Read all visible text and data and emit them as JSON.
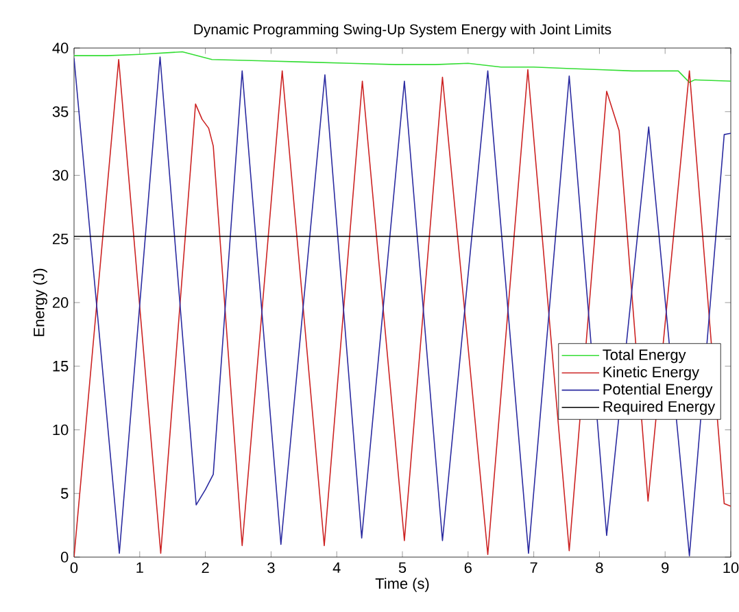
{
  "chart_data": {
    "type": "line",
    "title": "Dynamic Programming Swing-Up System Energy with Joint Limits",
    "xlabel": "Time (s)",
    "ylabel": "Energy (J)",
    "xlim": [
      0,
      10
    ],
    "xticks": [
      0,
      1,
      2,
      3,
      4,
      5,
      6,
      7,
      8,
      9,
      10
    ],
    "ylim": [
      0,
      40
    ],
    "yticks": [
      0,
      5,
      10,
      15,
      20,
      25,
      30,
      35,
      40
    ],
    "grid": false,
    "legend": "right",
    "marker": "none",
    "line_style": "solid",
    "series": [
      {
        "name": "Total Energy",
        "color": "#33dd33",
        "x": [
          0,
          0.5,
          1.0,
          1.65,
          1.8,
          2.1,
          2.8,
          3.5,
          4.2,
          4.9,
          5.5,
          6.0,
          6.5,
          7.0,
          7.5,
          8.0,
          8.5,
          9.2,
          9.37,
          9.45,
          10
        ],
        "values": [
          39.4,
          39.4,
          39.5,
          39.7,
          39.5,
          39.1,
          39.0,
          38.9,
          38.8,
          38.7,
          38.7,
          38.8,
          38.5,
          38.5,
          38.4,
          38.3,
          38.2,
          38.2,
          37.3,
          37.5,
          37.4
        ]
      },
      {
        "name": "Kinetic Energy",
        "color": "#cc2222",
        "x": [
          0,
          0.68,
          1.32,
          1.85,
          1.95,
          2.05,
          2.12,
          2.56,
          3.17,
          3.81,
          4.39,
          5.03,
          5.61,
          6.3,
          6.91,
          7.54,
          8.11,
          8.3,
          8.74,
          9.37,
          9.9,
          10
        ],
        "values": [
          0,
          39.1,
          0.3,
          35.6,
          34.4,
          33.7,
          32.3,
          0.9,
          38.2,
          0.9,
          37.4,
          1.3,
          37.7,
          0.2,
          38.3,
          0.5,
          36.6,
          33.5,
          4.4,
          38.2,
          4.2,
          4.0
        ]
      },
      {
        "name": "Potential Energy",
        "color": "#2a2aa0",
        "x": [
          0,
          0.69,
          1.31,
          1.86,
          2.0,
          2.12,
          2.56,
          3.15,
          3.82,
          4.38,
          5.03,
          5.61,
          6.3,
          6.92,
          7.54,
          8.11,
          8.75,
          9.37,
          9.9,
          10
        ],
        "values": [
          39.2,
          0.3,
          39.3,
          4.1,
          5.3,
          6.5,
          38.2,
          1.0,
          37.9,
          1.5,
          37.4,
          1.3,
          38.2,
          0.3,
          37.8,
          1.7,
          33.8,
          0.1,
          33.2,
          33.3
        ]
      },
      {
        "name": "Required Energy",
        "color": "#000000",
        "x": [
          0,
          10
        ],
        "values": [
          25.2,
          25.2
        ]
      }
    ]
  }
}
